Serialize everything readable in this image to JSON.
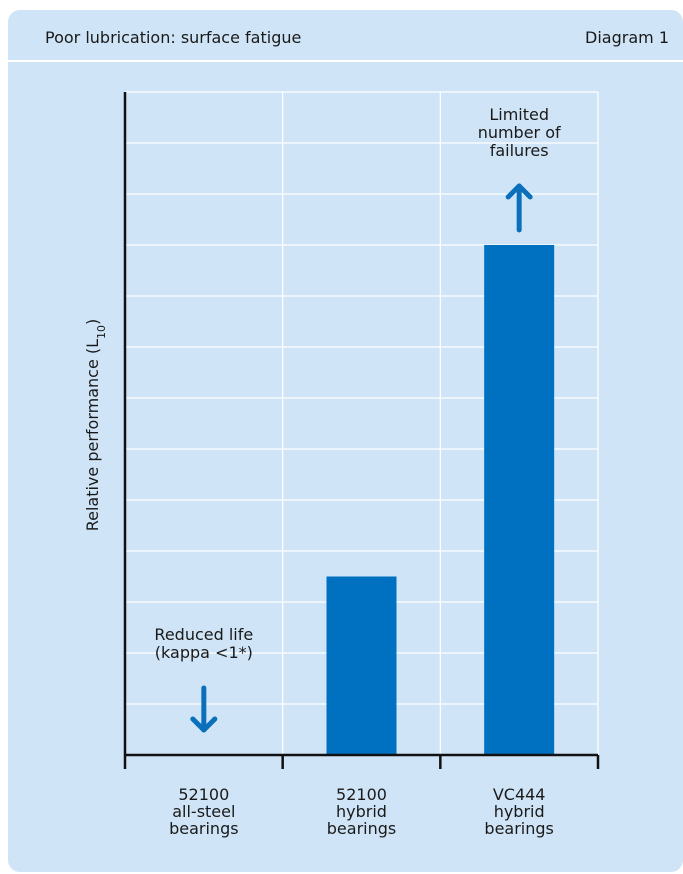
{
  "header": {
    "title": "Poor lubrication: surface fatigue",
    "diagram_label": "Diagram 1"
  },
  "colors": {
    "panel": "#cfe4f6",
    "bar": "#0070c0",
    "arrow": "#0a70bb",
    "grid": "#ffffff",
    "axis": "#111111"
  },
  "chart_data": {
    "type": "bar",
    "title": "Poor lubrication: surface fatigue",
    "ylabel": "Relative performance (L",
    "ylabel_subscript": "10",
    "ylabel_suffix": ")",
    "categories": [
      [
        "52100",
        "all-steel",
        "bearings"
      ],
      [
        "52100",
        "hybrid",
        "bearings"
      ],
      [
        "VC444",
        "hybrid",
        "bearings"
      ]
    ],
    "values": [
      0,
      3.5,
      10
    ],
    "ylim": [
      0,
      13
    ],
    "grid": true,
    "annotations": [
      {
        "category_index": 0,
        "lines": [
          "Reduced life",
          "(kappa <1*)"
        ],
        "arrow": "down"
      },
      {
        "category_index": 2,
        "lines": [
          "Limited",
          "number of",
          "failures"
        ],
        "arrow": "up"
      }
    ]
  }
}
